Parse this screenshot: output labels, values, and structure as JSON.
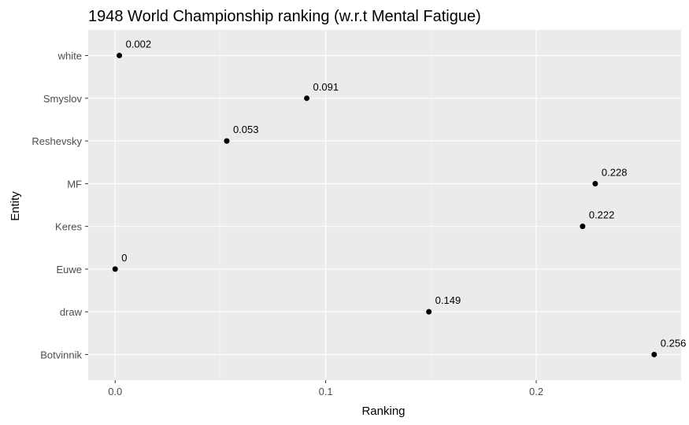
{
  "chart_data": {
    "type": "scatter",
    "title": "1948 World Championship ranking (w.r.t Mental Fatigue)",
    "xlabel": "Ranking",
    "ylabel": "Entity",
    "categories": [
      "white",
      "Smyslov",
      "Reshevsky",
      "MF",
      "Keres",
      "Euwe",
      "draw",
      "Botvinnik"
    ],
    "values": [
      0.002,
      0.091,
      0.053,
      0.228,
      0.222,
      0,
      0.149,
      0.256
    ],
    "data_labels": [
      "0.002",
      "0.091",
      "0.053",
      "0.228",
      "0.222",
      "0",
      "0.149",
      "0.256"
    ],
    "x_ticks": [
      0,
      0.1,
      0.2
    ],
    "x_tick_labels": [
      "0.0",
      "0.1",
      "0.2"
    ],
    "xlim": [
      -0.0128,
      0.2688
    ],
    "grid": true,
    "colors": {
      "panel_background": "#ebebeb",
      "grid_major": "#ffffff",
      "point": "#000000"
    }
  }
}
